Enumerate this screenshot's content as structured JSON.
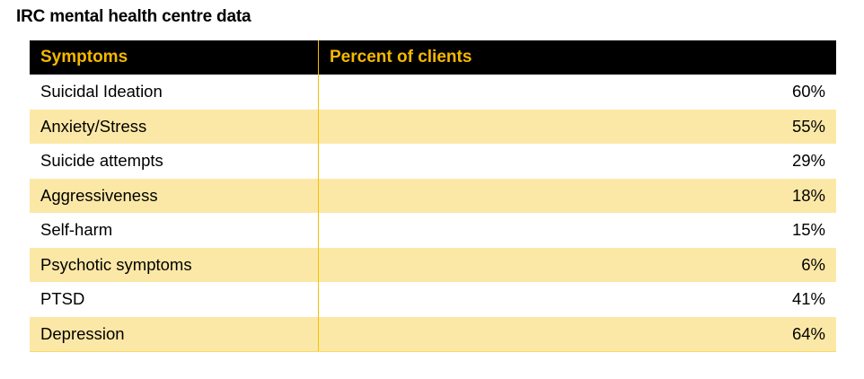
{
  "title": "IRC mental health centre data",
  "chart_data": {
    "type": "table",
    "title": "IRC mental health centre data",
    "columns": [
      "Symptoms",
      "Percent of clients"
    ],
    "rows": [
      {
        "symptom": "Suicidal Ideation",
        "percent": "60%"
      },
      {
        "symptom": "Anxiety/Stress",
        "percent": "55%"
      },
      {
        "symptom": "Suicide attempts",
        "percent": "29%"
      },
      {
        "symptom": "Aggressiveness",
        "percent": "18%"
      },
      {
        "symptom": "Self-harm",
        "percent": "15%"
      },
      {
        "symptom": "Psychotic symptoms",
        "percent": "6%"
      },
      {
        "symptom": "PTSD",
        "percent": "41%"
      },
      {
        "symptom": "Depression",
        "percent": "64%"
      }
    ],
    "values": [
      60,
      55,
      29,
      18,
      15,
      6,
      41,
      64
    ]
  },
  "colors": {
    "header_background": "#000000",
    "header_text": "#f5b800",
    "stripe": "#fce8a6",
    "divider": "#f2c200"
  }
}
